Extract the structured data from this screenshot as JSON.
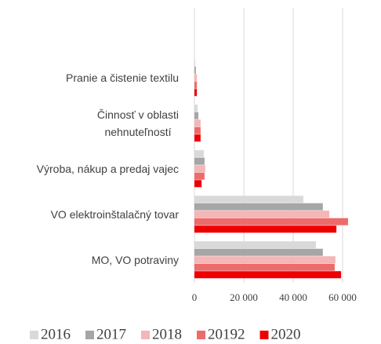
{
  "chart_data": {
    "type": "hbar",
    "categories": [
      "Pranie a čistenie textilu",
      "Činnosť v oblasti\nnehnuteľností",
      "Výroba, nákup a predaj vajec",
      "VO elektroinštalačný tovar",
      "MO, VO potraviny"
    ],
    "series": [
      {
        "name": "2016",
        "color": "#d9d9d9",
        "values": [
          300,
          1300,
          3800,
          44100,
          49200
        ]
      },
      {
        "name": "2017",
        "color": "#a6a6a6",
        "values": [
          600,
          1600,
          4100,
          52000,
          52000
        ]
      },
      {
        "name": "2018",
        "color": "#f4b6b6",
        "values": [
          1000,
          2500,
          4400,
          54600,
          57100
        ]
      },
      {
        "name": "20192",
        "color": "#ee6b6b",
        "values": [
          1000,
          2500,
          4100,
          62200,
          56800
        ]
      },
      {
        "name": "2020",
        "color": "#ee0000",
        "values": [
          1000,
          2500,
          2900,
          57500,
          59400
        ]
      }
    ],
    "xlim": [
      0,
      70000
    ],
    "xticks": [
      0,
      {
        "value": 20000,
        "label": "20 000"
      },
      {
        "value": 40000,
        "label": "40 000"
      },
      {
        "value": 60000,
        "label": "60 000"
      }
    ],
    "grid": true,
    "legend": "bottom"
  }
}
